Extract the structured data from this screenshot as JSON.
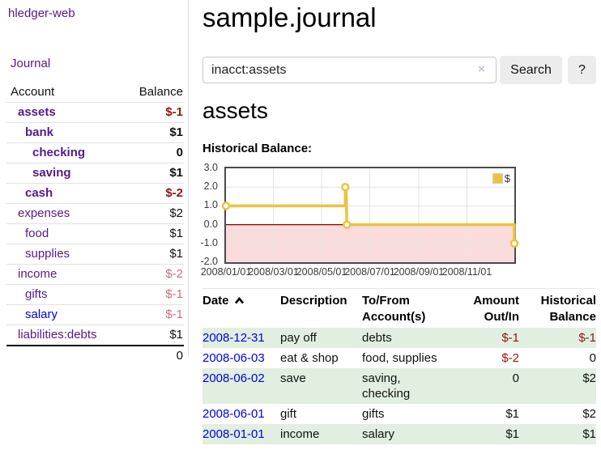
{
  "app": {
    "brand": "hledger-web",
    "nav_journal": "Journal"
  },
  "colors": {
    "link_purple": "#551a8b",
    "link_blue": "#0000e6",
    "negative_dark_red": "#941414",
    "negative_rose": "#c1737c",
    "row_green": "#e0efdf",
    "chart_gold": "#edc240"
  },
  "sidebar": {
    "header": {
      "account": "Account",
      "balance": "Balance"
    },
    "accounts": [
      {
        "name": "assets",
        "depth": 1,
        "bold": true,
        "name_color": "purple",
        "balance": "$-1",
        "balance_color": "negdark"
      },
      {
        "name": "bank",
        "depth": 2,
        "bold": true,
        "name_color": "purple",
        "balance": "$1",
        "balance_color": "black"
      },
      {
        "name": "checking",
        "depth": 3,
        "bold": true,
        "name_color": "purple",
        "balance": "0",
        "balance_color": "black"
      },
      {
        "name": "saving",
        "depth": 3,
        "bold": true,
        "name_color": "purple",
        "balance": "$1",
        "balance_color": "black"
      },
      {
        "name": "cash",
        "depth": 2,
        "bold": true,
        "name_color": "purple",
        "balance": "$-2",
        "balance_color": "negdark"
      },
      {
        "name": "expenses",
        "depth": 1,
        "bold": false,
        "name_color": "purple",
        "balance": "$2",
        "balance_color": "black"
      },
      {
        "name": "food",
        "depth": 2,
        "bold": false,
        "name_color": "purple",
        "balance": "$1",
        "balance_color": "black"
      },
      {
        "name": "supplies",
        "depth": 2,
        "bold": false,
        "name_color": "purple",
        "balance": "$1",
        "balance_color": "black"
      },
      {
        "name": "income",
        "depth": 1,
        "bold": false,
        "name_color": "purple",
        "balance": "$-2",
        "balance_color": "neglight"
      },
      {
        "name": "gifts",
        "depth": 2,
        "bold": false,
        "name_color": "purple",
        "balance": "$-1",
        "balance_color": "neglight"
      },
      {
        "name": "salary",
        "depth": 2,
        "bold": false,
        "name_color": "blue",
        "balance": "$-1",
        "balance_color": "neglight"
      },
      {
        "name": "liabilities:debts",
        "depth": 1,
        "bold": false,
        "name_color": "purple",
        "balance": "$1",
        "balance_color": "black"
      }
    ],
    "total": "0"
  },
  "header": {
    "title": "sample.journal"
  },
  "search": {
    "value": "inacct:assets",
    "clear_icon": "×",
    "button": "Search",
    "help": "?"
  },
  "account_page": {
    "heading": "assets",
    "chart_label": "Historical Balance:"
  },
  "chart_data": {
    "type": "line",
    "step": true,
    "title": "Historical Balance",
    "series": [
      {
        "name": "$",
        "color": "#edc240",
        "points": [
          [
            "2008-01-01",
            1.0
          ],
          [
            "2008-06-01",
            2.0
          ],
          [
            "2008-06-03",
            0.0
          ],
          [
            "2008-12-31",
            -1.0
          ]
        ]
      }
    ],
    "ylim": [
      -2.0,
      3.0
    ],
    "ytick_labels": [
      "3.0",
      "2.0",
      "1.0",
      "0.0",
      "-1.0",
      "-2.0"
    ],
    "ytick_values": [
      3,
      2,
      1,
      0,
      -1,
      -2
    ],
    "xtick_labels": [
      "2008/01/01",
      "2008/03/01",
      "2008/05/01",
      "2008/07/01",
      "2008/09/01",
      "2008/11/01"
    ],
    "xtick_days": [
      0,
      60,
      121,
      182,
      244,
      305
    ],
    "x_domain_days": [
      0,
      365
    ],
    "line_days": [
      [
        0,
        1
      ],
      [
        151,
        1
      ],
      [
        151,
        2
      ],
      [
        152,
        2
      ],
      [
        153,
        0
      ],
      [
        365,
        0
      ],
      [
        365,
        -1
      ]
    ],
    "marker_days": [
      [
        0,
        1
      ],
      [
        151,
        2
      ],
      [
        153,
        0
      ],
      [
        365,
        -1
      ]
    ],
    "legend": {
      "label": "$",
      "position": "top-right"
    },
    "grid": true,
    "negative_region_fill": "#fbdcdc",
    "zero_line_color": "#8b0000"
  },
  "table": {
    "headers": [
      "Date",
      "Description",
      "To/From Account(s)",
      "Amount Out/In",
      "Historical Balance"
    ],
    "sort": {
      "column": "Date",
      "direction": "ascending"
    },
    "rows": [
      {
        "date": "2008-12-31",
        "description": "pay off",
        "accounts": "debts",
        "amount": "$-1",
        "balance": "$-1"
      },
      {
        "date": "2008-06-03",
        "description": "eat & shop",
        "accounts": "food, supplies",
        "amount": "$-2",
        "balance": "0"
      },
      {
        "date": "2008-06-02",
        "description": "save",
        "accounts": "saving, checking",
        "amount": "0",
        "balance": "$2"
      },
      {
        "date": "2008-06-01",
        "description": "gift",
        "accounts": "gifts",
        "amount": "$1",
        "balance": "$2"
      },
      {
        "date": "2008-01-01",
        "description": "income",
        "accounts": "salary",
        "amount": "$1",
        "balance": "$1"
      }
    ]
  }
}
